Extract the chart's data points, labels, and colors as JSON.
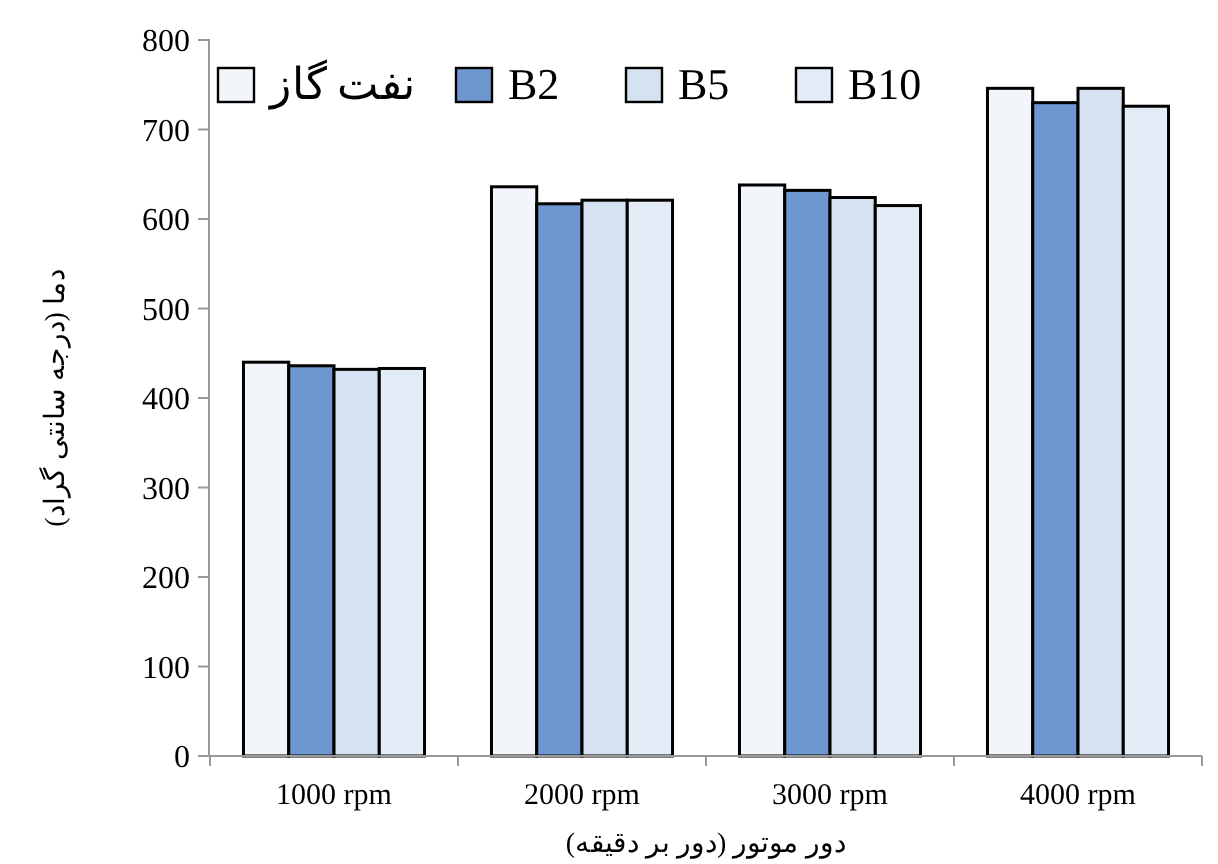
{
  "chart_data": {
    "type": "bar",
    "xlabel": "دور موتور (دور بر دقیقه)",
    "ylabel": "دما (درجه سانتی گراد)",
    "categories": [
      "1000 rpm",
      "2000 rpm",
      "3000 rpm",
      "4000 rpm"
    ],
    "series": [
      {
        "name": "نفت گاز",
        "color": "#f2f5fa",
        "values": [
          440,
          636,
          638,
          746
        ]
      },
      {
        "name": "B2",
        "color": "#6f97cf",
        "values": [
          436,
          617,
          632,
          730
        ]
      },
      {
        "name": "B5",
        "color": "#d5e2f2",
        "values": [
          432,
          621,
          624,
          746
        ]
      },
      {
        "name": "B10",
        "color": "#e3ebf6",
        "values": [
          433,
          621,
          615,
          726
        ]
      }
    ],
    "ylim": [
      0,
      800
    ],
    "yticks": [
      0,
      100,
      200,
      300,
      400,
      500,
      600,
      700,
      800
    ],
    "grid": false,
    "legend": "top left"
  }
}
